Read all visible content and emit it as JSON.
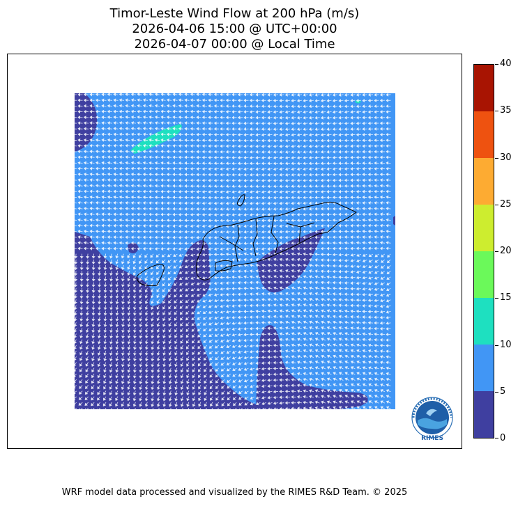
{
  "title": {
    "line1": "Timor-Leste Wind Flow at 200 hPa (m/s)",
    "line2": "2026-04-06 15:00 @ UTC+00:00",
    "line3": "2026-04-07 00:00 @ Local Time"
  },
  "colorbar": {
    "unit": "m/s",
    "ticks": [
      "0",
      "5",
      "10",
      "15",
      "20",
      "25",
      "30",
      "35",
      "40"
    ],
    "bins": [
      {
        "min": 0,
        "max": 5,
        "color": "#3f3fa0"
      },
      {
        "min": 5,
        "max": 10,
        "color": "#4196f5"
      },
      {
        "min": 10,
        "max": 15,
        "color": "#1ee0c0"
      },
      {
        "min": 15,
        "max": 20,
        "color": "#6bf95a"
      },
      {
        "min": 20,
        "max": 25,
        "color": "#cded2f"
      },
      {
        "min": 25,
        "max": 30,
        "color": "#fdab32"
      },
      {
        "min": 30,
        "max": 35,
        "color": "#ee5210"
      },
      {
        "min": 35,
        "max": 40,
        "color": "#a81402"
      }
    ]
  },
  "map": {
    "speed_colors": {
      "calm": "#3f3fa0",
      "moderate": "#4196f5",
      "fast": "#1ee0c0"
    },
    "arrow_color": "#ffffff",
    "boundary_color": "#000000"
  },
  "logo": {
    "text": "RIMES",
    "ring_text": "Regional Integrated Multi-Hazard Early Warning System",
    "icon": "rimes-logo-icon"
  },
  "footer": "WRF model data processed and visualized by the RIMES R&D Team. © 2025"
}
